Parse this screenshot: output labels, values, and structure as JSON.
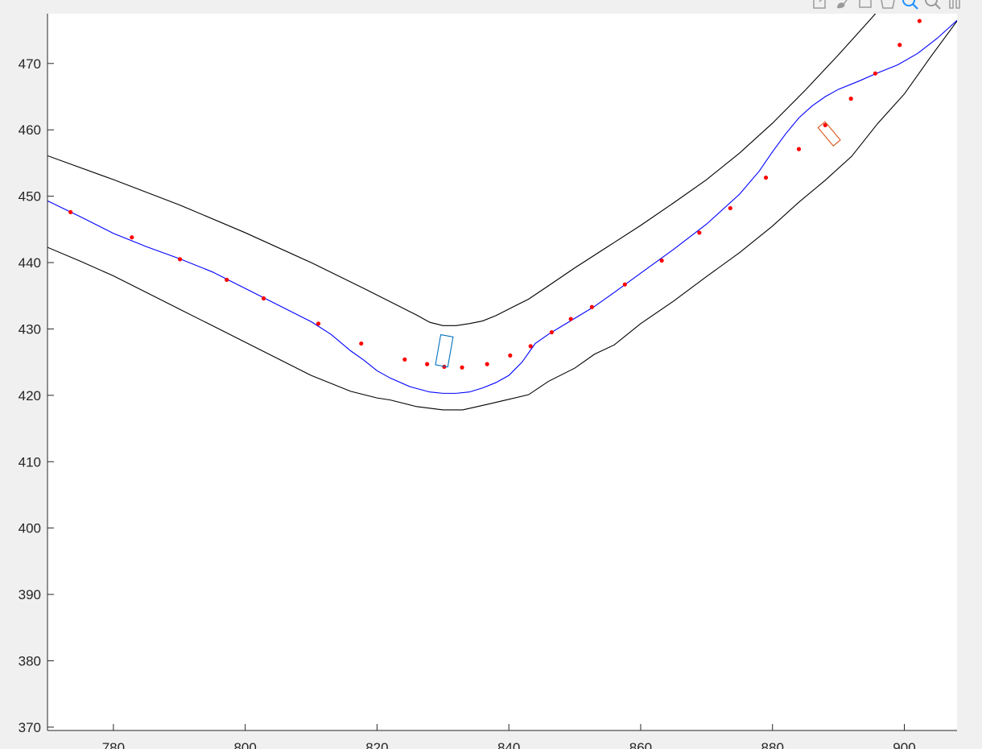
{
  "toolbar": {
    "icons": [
      "export-icon",
      "brush-icon",
      "datatip-icon",
      "pan-icon",
      "zoom-in-icon",
      "zoom-out-icon",
      "restore-view-icon"
    ]
  },
  "colors": {
    "background": "#f0f0f0",
    "axes": "#ffffff",
    "road_edges": "#000000",
    "path": "#0000ff",
    "waypoints": "#ff0000",
    "ego_vehicle": "#0072bd",
    "other_vehicle": "#d95319",
    "toolbar_active": "#1e90ff"
  },
  "chart_data": {
    "type": "line",
    "title": "",
    "xlabel": "",
    "ylabel": "",
    "xlim": [
      770,
      908
    ],
    "ylim": [
      369.5,
      477.5
    ],
    "grid": false,
    "xticks": [
      780,
      800,
      820,
      840,
      860,
      880,
      900
    ],
    "yticks": [
      370,
      380,
      390,
      400,
      410,
      420,
      430,
      440,
      450,
      460,
      470
    ],
    "series": [
      {
        "style": "line",
        "color": "#000000",
        "x": [
          770,
          780,
          790,
          800,
          810,
          818,
          823,
          826,
          828,
          830,
          832,
          834,
          836,
          838,
          840,
          843,
          846,
          850,
          855,
          860,
          865,
          870,
          875,
          880,
          885,
          890,
          895,
          900,
          904
        ],
        "y": [
          456.1,
          452.5,
          448.7,
          444.5,
          440.0,
          436.1,
          433.6,
          432.1,
          431.0,
          430.5,
          430.5,
          430.8,
          431.2,
          432.0,
          433.0,
          434.5,
          436.5,
          439.2,
          442.4,
          445.6,
          449.0,
          452.5,
          456.5,
          461.0,
          466.0,
          471.3,
          476.8,
          482.5,
          487.0
        ]
      },
      {
        "style": "line",
        "color": "#000000",
        "x": [
          770,
          775,
          780,
          790,
          800,
          810,
          816,
          820,
          822,
          826,
          830,
          833,
          837,
          840,
          843,
          846,
          850,
          853,
          856,
          860,
          865,
          870,
          875,
          880,
          884,
          888,
          892,
          896,
          900,
          904,
          908
        ],
        "y": [
          442.3,
          440.2,
          438.0,
          433.0,
          428.0,
          423.0,
          420.6,
          419.6,
          419.3,
          418.3,
          417.8,
          417.8,
          418.7,
          419.4,
          420.1,
          422.1,
          424.1,
          426.2,
          427.6,
          430.8,
          434.2,
          437.9,
          441.5,
          445.5,
          449.1,
          452.4,
          456.0,
          461.0,
          465.4,
          471.0,
          476.4
        ]
      },
      {
        "style": "line",
        "color": "#0000ff",
        "x": [
          770,
          775,
          780,
          785,
          790,
          795,
          800,
          805,
          810,
          813,
          816,
          818,
          820,
          822,
          825,
          828,
          830,
          832,
          834,
          836,
          838,
          840,
          842,
          844,
          846,
          848,
          850,
          853,
          856,
          860,
          865,
          870,
          875,
          878,
          880,
          882,
          884,
          886,
          888,
          890,
          893,
          896,
          899,
          902,
          905,
          908
        ],
        "y": [
          449.3,
          446.9,
          444.4,
          442.4,
          440.6,
          438.6,
          436.1,
          433.6,
          431.1,
          429.2,
          426.7,
          425.3,
          423.7,
          422.6,
          421.3,
          420.5,
          420.3,
          420.3,
          420.5,
          421.1,
          421.9,
          423.0,
          425.0,
          427.8,
          429.2,
          430.4,
          431.6,
          433.4,
          435.5,
          438.4,
          442.0,
          445.8,
          450.3,
          453.8,
          456.7,
          459.4,
          461.8,
          463.6,
          465.0,
          466.1,
          467.3,
          468.6,
          469.8,
          471.5,
          473.8,
          476.5
        ]
      },
      {
        "style": "markers",
        "color": "#ff0000",
        "x": [
          773.5,
          782.8,
          790.1,
          797.2,
          802.8,
          811.1,
          817.6,
          824.2,
          827.6,
          830.2,
          832.9,
          836.7,
          840.2,
          843.3,
          846.5,
          849.4,
          852.6,
          857.6,
          863.2,
          868.9,
          873.6,
          879.0,
          884.0,
          888.0,
          891.9,
          895.6,
          899.3,
          902.3
        ],
        "y": [
          447.6,
          443.8,
          440.5,
          437.4,
          434.6,
          430.8,
          427.8,
          425.4,
          424.7,
          424.3,
          424.2,
          424.7,
          426.0,
          427.4,
          429.5,
          431.5,
          433.3,
          436.7,
          440.3,
          444.5,
          448.2,
          452.8,
          457.1,
          460.7,
          464.7,
          468.5,
          472.8,
          476.4
        ]
      }
    ],
    "vehicles": [
      {
        "name": "ego-vehicle",
        "color": "#0072bd",
        "cx": 830.2,
        "cy": 426.7,
        "length": 4.6,
        "width": 1.9,
        "heading_deg": 80
      },
      {
        "name": "other-vehicle",
        "color": "#d95319",
        "cx": 888.6,
        "cy": 459.4,
        "length": 3.6,
        "width": 1.4,
        "heading_deg": -50
      }
    ]
  }
}
